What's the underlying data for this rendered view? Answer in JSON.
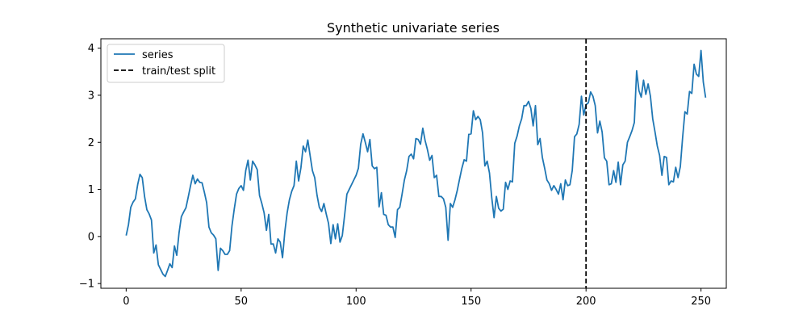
{
  "chart_data": {
    "type": "line",
    "title": "Synthetic univariate series",
    "xlabel": "",
    "ylabel": "",
    "xlim": [
      -11,
      261
    ],
    "ylim": [
      -1.1,
      4.2
    ],
    "x_ticks": [
      0,
      50,
      100,
      150,
      200,
      250
    ],
    "y_ticks": [
      -1,
      0,
      1,
      2,
      3,
      4
    ],
    "grid": false,
    "legend_position": "top-left",
    "split_x": 200,
    "series": [
      {
        "name": "series",
        "color": "#1f77b4",
        "x_start": 0,
        "x_step": 1,
        "values": [
          0.02,
          0.25,
          0.62,
          0.73,
          0.8,
          1.1,
          1.32,
          1.25,
          0.85,
          0.57,
          0.48,
          0.35,
          -0.35,
          -0.18,
          -0.6,
          -0.7,
          -0.8,
          -0.85,
          -0.72,
          -0.58,
          -0.66,
          -0.2,
          -0.4,
          0.08,
          0.42,
          0.52,
          0.61,
          0.84,
          1.08,
          1.3,
          1.12,
          1.22,
          1.15,
          1.14,
          0.94,
          0.72,
          0.2,
          0.08,
          0.03,
          -0.05,
          -0.72,
          -0.25,
          -0.3,
          -0.38,
          -0.38,
          -0.3,
          0.22,
          0.58,
          0.9,
          1.02,
          1.08,
          0.98,
          1.4,
          1.62,
          1.2,
          1.6,
          1.52,
          1.42,
          0.87,
          0.7,
          0.5,
          0.13,
          0.47,
          -0.16,
          -0.16,
          -0.35,
          -0.05,
          -0.12,
          -0.45,
          0.1,
          0.5,
          0.78,
          0.96,
          1.08,
          1.6,
          1.18,
          1.46,
          1.92,
          1.8,
          2.05,
          1.72,
          1.4,
          1.25,
          0.88,
          0.62,
          0.53,
          0.7,
          0.48,
          0.28,
          -0.15,
          0.25,
          -0.05,
          0.27,
          -0.12,
          0.02,
          0.45,
          0.9,
          1.0,
          1.1,
          1.2,
          1.3,
          1.45,
          1.96,
          2.18,
          2.0,
          1.8,
          2.06,
          1.5,
          1.44,
          1.47,
          0.63,
          0.93,
          0.47,
          0.45,
          0.25,
          0.2,
          0.2,
          -0.02,
          0.57,
          0.62,
          0.9,
          1.2,
          1.4,
          1.7,
          1.75,
          1.65,
          2.08,
          2.06,
          1.96,
          2.3,
          2.04,
          1.85,
          1.62,
          1.72,
          1.25,
          1.3,
          0.85,
          0.85,
          0.8,
          0.62,
          -0.08,
          0.7,
          0.62,
          0.78,
          0.98,
          1.22,
          1.45,
          1.63,
          1.6,
          2.17,
          2.18,
          2.67,
          2.48,
          2.55,
          2.48,
          2.2,
          1.5,
          1.6,
          1.35,
          0.82,
          0.4,
          0.85,
          0.6,
          0.54,
          0.58,
          1.15,
          1.0,
          1.18,
          1.16,
          1.98,
          2.13,
          2.35,
          2.5,
          2.78,
          2.78,
          2.87,
          2.72,
          2.35,
          2.78,
          1.95,
          2.08,
          1.68,
          1.45,
          1.2,
          1.12,
          0.98,
          1.08,
          1.0,
          0.9,
          1.12,
          0.78,
          1.2,
          1.08,
          1.1,
          1.4,
          2.12,
          2.18,
          2.38,
          2.98,
          2.58,
          2.8,
          2.84,
          3.07,
          2.98,
          2.78,
          2.2,
          2.45,
          2.22,
          1.67,
          1.6,
          1.1,
          1.12,
          1.4,
          1.15,
          1.58,
          1.1,
          1.52,
          1.6,
          2.0,
          2.12,
          2.25,
          2.42,
          3.52,
          3.1,
          2.96,
          3.32,
          3.02,
          3.24,
          2.98,
          2.5,
          2.22,
          1.92,
          1.72,
          1.3,
          1.7,
          1.68,
          1.1,
          1.18,
          1.16,
          1.47,
          1.25,
          1.48,
          2.1,
          2.65,
          2.6,
          3.08,
          3.04,
          3.66,
          3.45,
          3.4,
          3.95,
          3.28,
          2.95
        ]
      },
      {
        "name": "train/test split",
        "color": "#000000",
        "style": "dashed"
      }
    ]
  }
}
